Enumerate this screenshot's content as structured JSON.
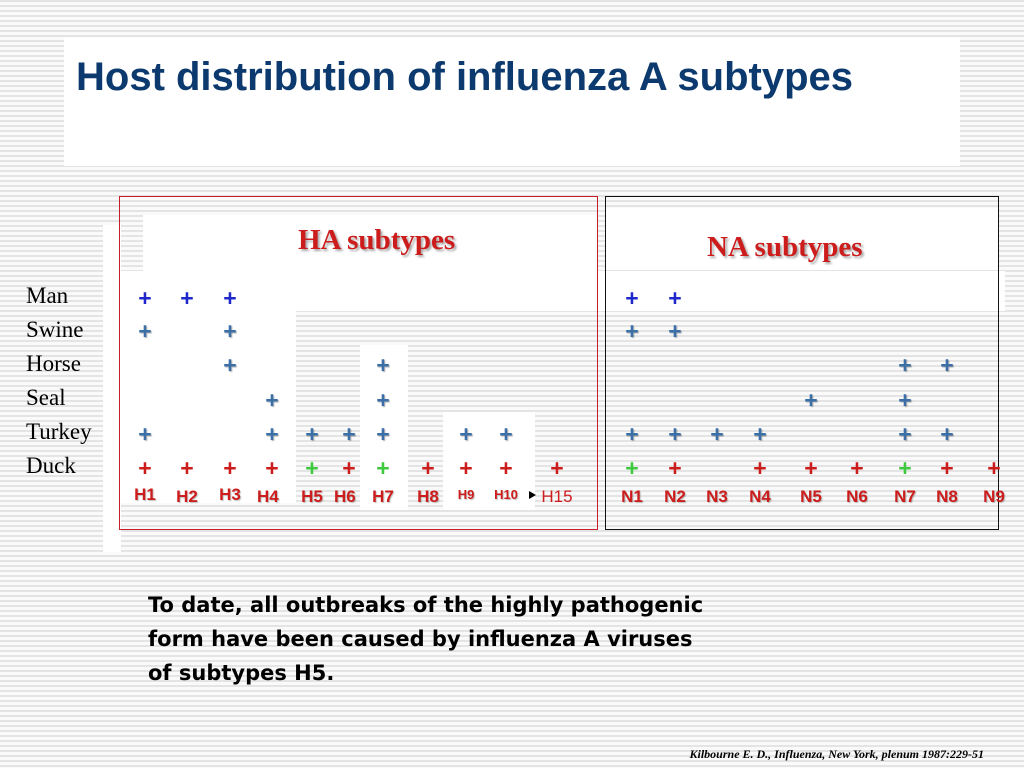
{
  "title": "Host distribution of influenza A subtypes",
  "ha_title": "HA subtypes",
  "na_title": "NA subtypes",
  "hosts": [
    "Man",
    "Swine",
    "Horse",
    "Seal",
    "Turkey",
    "Duck"
  ],
  "ha_subtypes": [
    "H1",
    "H2",
    "H3",
    "H4",
    "H5",
    "H6",
    "H7",
    "H8",
    "H9",
    "H10",
    "H15"
  ],
  "na_subtypes": [
    "N1",
    "N2",
    "N3",
    "N4",
    "N5",
    "N6",
    "N7",
    "N8",
    "N9"
  ],
  "plus_symbol": "+",
  "colors": {
    "title": "#0c3a6e",
    "accent_red": "#cc1c1c",
    "plus_blue": "#1f28c8",
    "plus_grayblue": "#3b6fa8",
    "plus_red": "#cc1c1c",
    "plus_green": "#3ec93e"
  },
  "ha_presence": {
    "Man": {
      "H1": "blue",
      "H2": "blue",
      "H3": "blue"
    },
    "Swine": {
      "H1": "grayblue",
      "H3": "grayblue"
    },
    "Horse": {
      "H3": "grayblue",
      "H7": "grayblue"
    },
    "Seal": {
      "H4": "grayblue",
      "H7": "grayblue"
    },
    "Turkey": {
      "H1": "grayblue",
      "H4": "grayblue",
      "H5": "grayblue",
      "H6": "grayblue",
      "H7": "grayblue",
      "H9": "grayblue",
      "H10": "grayblue"
    },
    "Duck": {
      "H1": "red",
      "H2": "red",
      "H3": "red",
      "H4": "red",
      "H5": "green",
      "H6": "red",
      "H7": "green",
      "H8": "red",
      "H9": "red",
      "H10": "red",
      "H15": "red"
    }
  },
  "na_presence": {
    "Man": {
      "N1": "blue",
      "N2": "blue"
    },
    "Swine": {
      "N1": "grayblue",
      "N2": "grayblue"
    },
    "Horse": {
      "N7": "grayblue",
      "N8": "grayblue"
    },
    "Seal": {
      "N5": "grayblue",
      "N7": "grayblue"
    },
    "Turkey": {
      "N1": "grayblue",
      "N2": "grayblue",
      "N3": "grayblue",
      "N4": "grayblue",
      "N7": "grayblue",
      "N8": "grayblue"
    },
    "Duck": {
      "N1": "green",
      "N2": "red",
      "N4": "red",
      "N5": "red",
      "N6": "red",
      "N7": "green",
      "N8": "red",
      "N9": "red"
    }
  },
  "note": "To date, all outbreaks of the highly pathogenic\nform have been caused  by influenza A viruses\nof subtypes H5.",
  "citation": "Kilbourne E. D., Influenza, New York, plenum 1987:229-51"
}
